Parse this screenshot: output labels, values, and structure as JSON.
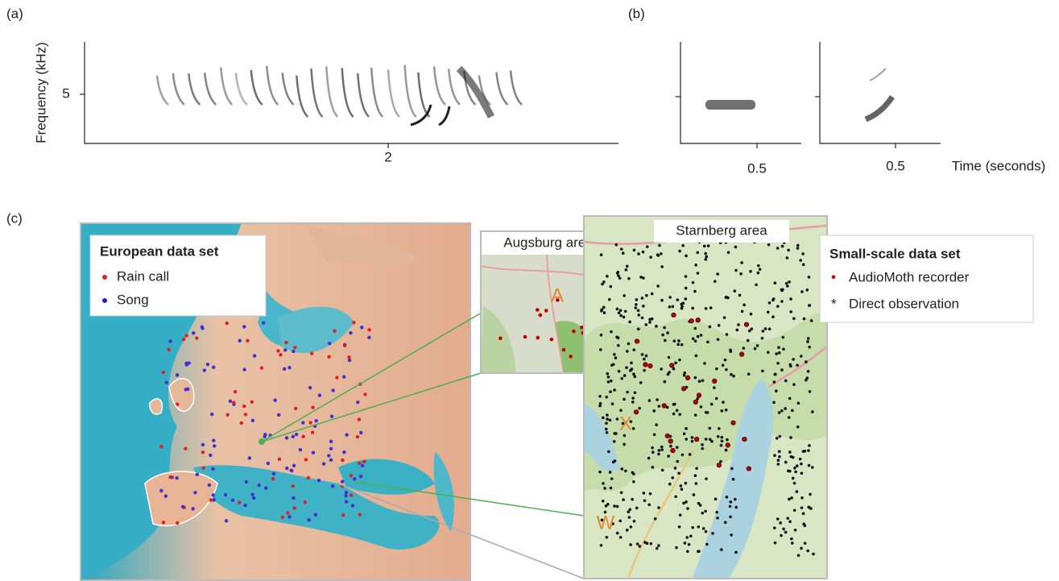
{
  "panel_a": {
    "label": "(a)",
    "y_label": "Frequency (kHz)",
    "y_tick": "5",
    "x_tick": "2"
  },
  "panel_b": {
    "label": "(b)",
    "x_ticks": [
      "0.5",
      "0.5"
    ],
    "x_label": "Time (seconds)"
  },
  "panel_c": {
    "label": "(c)",
    "europe_legend": {
      "title": "European data set",
      "items": [
        "Rain call",
        "Song"
      ]
    },
    "augsburg": {
      "title": "Augsburg area",
      "marker": "A"
    },
    "starnberg": {
      "title": "Starnberg area",
      "markers": [
        "X",
        "W"
      ]
    },
    "small_legend": {
      "title": "Small-scale data set",
      "items": [
        {
          "symbol": "•",
          "label": "AudioMoth recorder"
        },
        {
          "symbol": "*",
          "label": "Direct observation"
        }
      ]
    }
  }
}
